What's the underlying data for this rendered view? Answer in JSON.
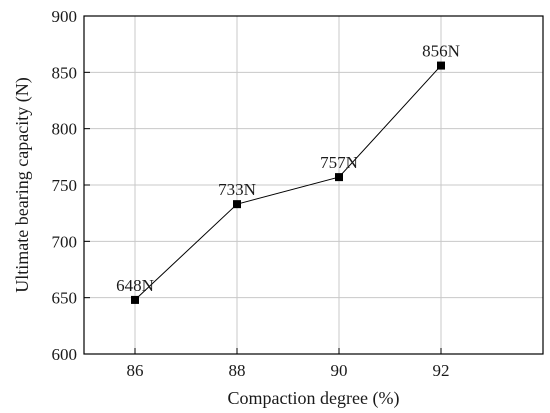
{
  "chart_data": {
    "type": "line",
    "x": [
      86,
      88,
      90,
      92
    ],
    "series": [
      {
        "values": [
          648,
          733,
          757,
          856
        ],
        "point_labels": [
          "648N",
          "733N",
          "757N",
          "856N"
        ]
      }
    ],
    "xlabel": "Compaction degree (%)",
    "ylabel": "Ultimate bearing capacity (N)",
    "xlim": [
      85,
      94
    ],
    "ylim": [
      600,
      900
    ],
    "xticks": [
      86,
      88,
      90,
      92
    ],
    "yticks": [
      600,
      650,
      700,
      750,
      800,
      850,
      900
    ],
    "xtick_labels": [
      "86",
      "88",
      "90",
      "92"
    ],
    "ytick_labels": [
      "600",
      "650",
      "700",
      "750",
      "800",
      "850",
      "900"
    ],
    "grid": true,
    "marker": "square",
    "colors": {
      "line": "#000000",
      "marker": "#000000",
      "grid": "#c8c8c8",
      "frame": "#000000"
    }
  }
}
